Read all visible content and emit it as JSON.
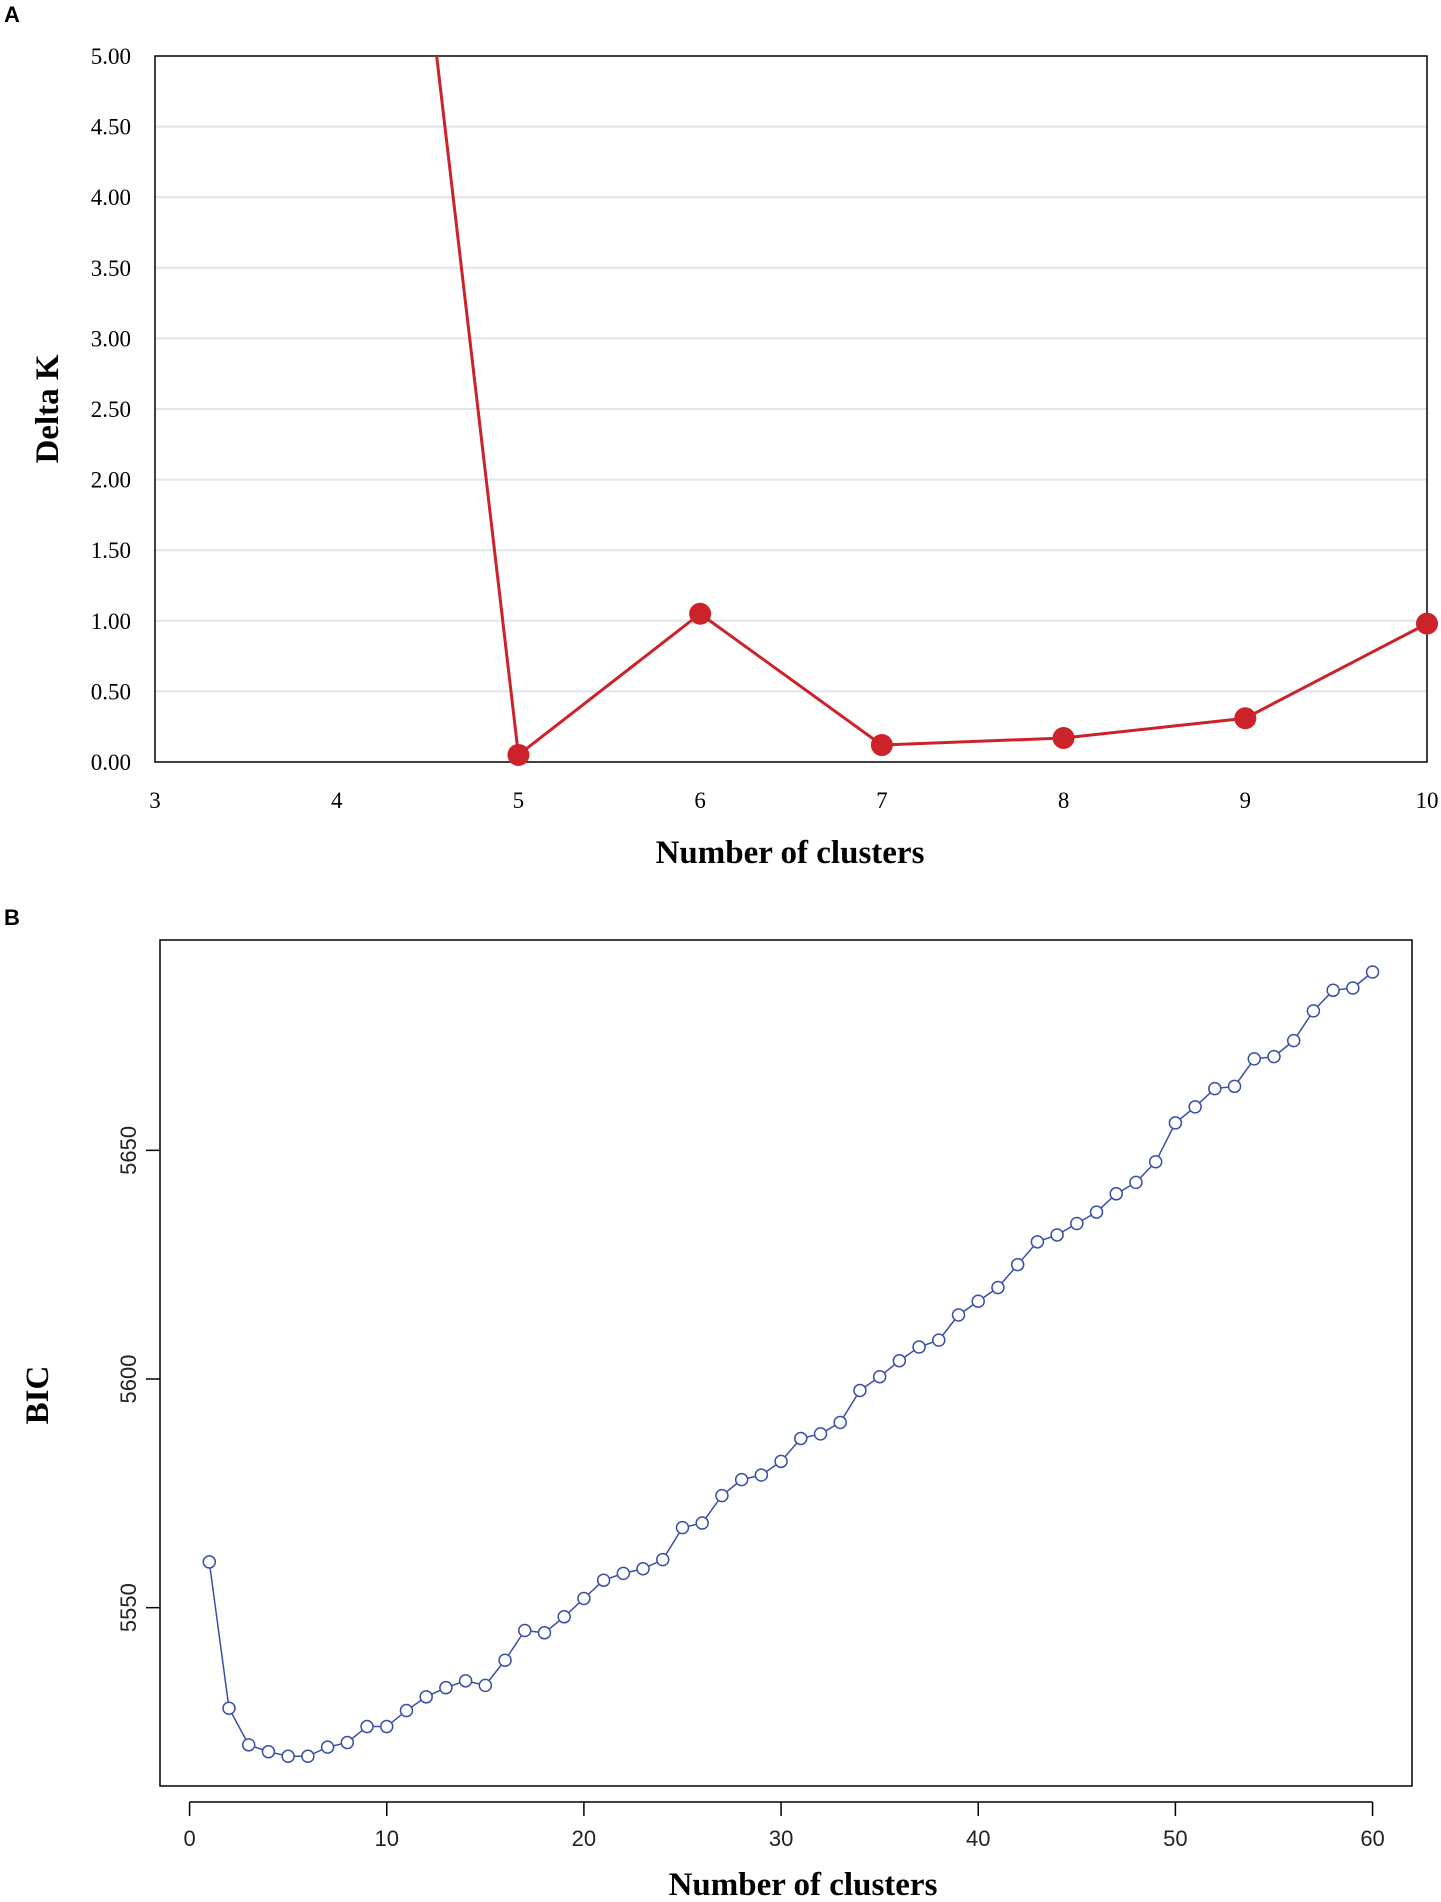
{
  "chart_data": [
    {
      "panel_label": "A",
      "type": "line",
      "xlabel": "Number of clusters",
      "ylabel": "Delta K",
      "x_ticks": [
        "3",
        "4",
        "5",
        "6",
        "7",
        "8",
        "9",
        "10"
      ],
      "y_ticks": [
        "5.00",
        "4.50",
        "4.00",
        "3.50",
        "3.00",
        "2.50",
        "2.00",
        "1.50",
        "1.00",
        "0.50",
        "0.00"
      ],
      "xlim": [
        3,
        10
      ],
      "ylim": [
        0,
        5
      ],
      "grid": true,
      "line_color": "#cc2229",
      "grid_color": "#dce6ef",
      "series": [
        {
          "x": [
            4,
            5,
            6,
            7,
            8,
            9,
            10
          ],
          "y": [
            null,
            0.05,
            1.05,
            0.12,
            0.17,
            0.31,
            0.98
          ],
          "note_x4_offscale": true
        }
      ]
    },
    {
      "panel_label": "B",
      "type": "line",
      "xlabel": "Number of clusters",
      "ylabel": "BIC",
      "x_ticks": [
        "0",
        "10",
        "20",
        "30",
        "40",
        "50",
        "60"
      ],
      "y_ticks": [
        "5550",
        "5600",
        "5650"
      ],
      "xlim": [
        -1.5,
        62
      ],
      "ylim": [
        5511,
        5696
      ],
      "grid": false,
      "line_color": "#3a4fa8",
      "series": [
        {
          "x": [
            1,
            2,
            3,
            4,
            5,
            6,
            7,
            8,
            9,
            10,
            11,
            12,
            13,
            14,
            15,
            16,
            17,
            18,
            19,
            20,
            21,
            22,
            23,
            24,
            25,
            26,
            27,
            28,
            29,
            30,
            31,
            32,
            33,
            34,
            35,
            36,
            37,
            38,
            39,
            40,
            41,
            42,
            43,
            44,
            45,
            46,
            47,
            48,
            49,
            50,
            51,
            52,
            53,
            54,
            55,
            56,
            57,
            58,
            59,
            60
          ],
          "y": [
            5560,
            5528,
            5520,
            5518.5,
            5517.5,
            5517.5,
            5519.5,
            5520.5,
            5524,
            5524,
            5527.5,
            5530.5,
            5532.5,
            5534,
            5533,
            5538.5,
            5545,
            5544.5,
            5548,
            5552,
            5556,
            5557.5,
            5558.5,
            5560.5,
            5567.5,
            5568.5,
            5574.5,
            5578,
            5579,
            5582,
            5587,
            5588,
            5590.5,
            5597.5,
            5600.5,
            5604,
            5607,
            5608.5,
            5614,
            5617,
            5620,
            5625,
            5630,
            5631.5,
            5634,
            5636.5,
            5640.5,
            5643,
            5647.5,
            5656,
            5659.5,
            5663.5,
            5664,
            5670,
            5670.5,
            5674,
            5680.5,
            5685,
            5685.5,
            5689
          ]
        }
      ]
    }
  ]
}
